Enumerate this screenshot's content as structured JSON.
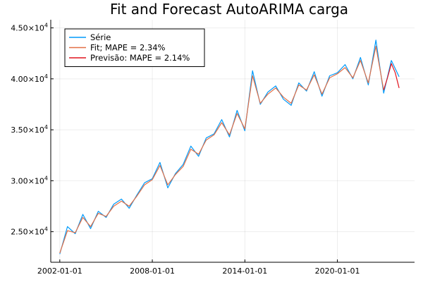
{
  "chart_data": {
    "type": "line",
    "title": "Fit and Forecast AutoARIMA carga",
    "xlabel": "",
    "ylabel": "",
    "xlim": [
      "2001-06-01",
      "2025-01-01"
    ],
    "ylim": [
      22000,
      45800
    ],
    "x_ticks": [
      "2002-01-01",
      "2008-01-01",
      "2014-01-01",
      "2020-01-01"
    ],
    "y_ticks": [
      {
        "value": 25000,
        "mantissa": "2.50",
        "exponent": "4"
      },
      {
        "value": 30000,
        "mantissa": "3.00",
        "exponent": "4"
      },
      {
        "value": 35000,
        "mantissa": "3.50",
        "exponent": "4"
      },
      {
        "value": 40000,
        "mantissa": "4.00",
        "exponent": "4"
      },
      {
        "value": 45000,
        "mantissa": "4.50",
        "exponent": "4"
      }
    ],
    "tick_multiplier": "×10",
    "grid": true,
    "legend_position": "top-left",
    "series": [
      {
        "name": "Série",
        "color": "#009AFA",
        "x": [
          "2002-01-01",
          "2002-07-01",
          "2003-01-01",
          "2003-07-01",
          "2004-01-01",
          "2004-07-01",
          "2005-01-01",
          "2005-07-01",
          "2006-01-01",
          "2006-07-01",
          "2007-01-01",
          "2007-07-01",
          "2008-01-01",
          "2008-07-01",
          "2009-01-01",
          "2009-07-01",
          "2010-01-01",
          "2010-07-01",
          "2011-01-01",
          "2011-07-01",
          "2012-01-01",
          "2012-07-01",
          "2013-01-01",
          "2013-07-01",
          "2014-01-01",
          "2014-07-01",
          "2015-01-01",
          "2015-07-01",
          "2016-01-01",
          "2016-07-01",
          "2017-01-01",
          "2017-07-01",
          "2018-01-01",
          "2018-07-01",
          "2019-01-01",
          "2019-07-01",
          "2020-01-01",
          "2020-07-01",
          "2021-01-01",
          "2021-07-01",
          "2022-01-01",
          "2022-07-01",
          "2023-01-01",
          "2023-07-01",
          "2024-01-01"
        ],
        "values": [
          22800,
          25500,
          24800,
          26700,
          25300,
          27000,
          26400,
          27700,
          28200,
          27300,
          28600,
          29800,
          30200,
          31800,
          29300,
          30700,
          31600,
          33400,
          32400,
          34200,
          34600,
          36000,
          34300,
          36900,
          34900,
          40800,
          37500,
          38700,
          39300,
          38000,
          37400,
          39600,
          38800,
          40700,
          38300,
          40300,
          40600,
          41400,
          40000,
          42100,
          39400,
          43800,
          38600,
          41800,
          40200
        ]
      },
      {
        "name": "Fit; MAPE = 2.34%",
        "color": "#E26F46",
        "x": [
          "2002-01-01",
          "2002-07-01",
          "2003-01-01",
          "2003-07-01",
          "2004-01-01",
          "2004-07-01",
          "2005-01-01",
          "2005-07-01",
          "2006-01-01",
          "2006-07-01",
          "2007-01-01",
          "2007-07-01",
          "2008-01-01",
          "2008-07-01",
          "2009-01-01",
          "2009-07-01",
          "2010-01-01",
          "2010-07-01",
          "2011-01-01",
          "2011-07-01",
          "2012-01-01",
          "2012-07-01",
          "2013-01-01",
          "2013-07-01",
          "2014-01-01",
          "2014-07-01",
          "2015-01-01",
          "2015-07-01",
          "2016-01-01",
          "2016-07-01",
          "2017-01-01",
          "2017-07-01",
          "2018-01-01",
          "2018-07-01",
          "2019-01-01",
          "2019-07-01",
          "2020-01-01",
          "2020-07-01",
          "2021-01-01",
          "2021-07-01",
          "2022-01-01",
          "2022-07-01",
          "2023-01-01"
        ],
        "values": [
          22900,
          25100,
          24900,
          26400,
          25500,
          26800,
          26500,
          27500,
          28000,
          27500,
          28500,
          29600,
          30100,
          31500,
          29600,
          30600,
          31400,
          33100,
          32600,
          34000,
          34500,
          35700,
          34500,
          36600,
          35100,
          40300,
          37600,
          38500,
          39100,
          38200,
          37600,
          39400,
          38900,
          40400,
          38500,
          40100,
          40500,
          41100,
          40100,
          41800,
          39600,
          43200,
          38900
        ]
      },
      {
        "name": "Previsão: MAPE = 2.14%",
        "color": "#E0141E",
        "x": [
          "2023-01-01",
          "2023-04-01",
          "2023-07-01",
          "2023-10-01",
          "2024-01-01"
        ],
        "values": [
          38900,
          40100,
          41500,
          40600,
          39100
        ]
      }
    ]
  }
}
